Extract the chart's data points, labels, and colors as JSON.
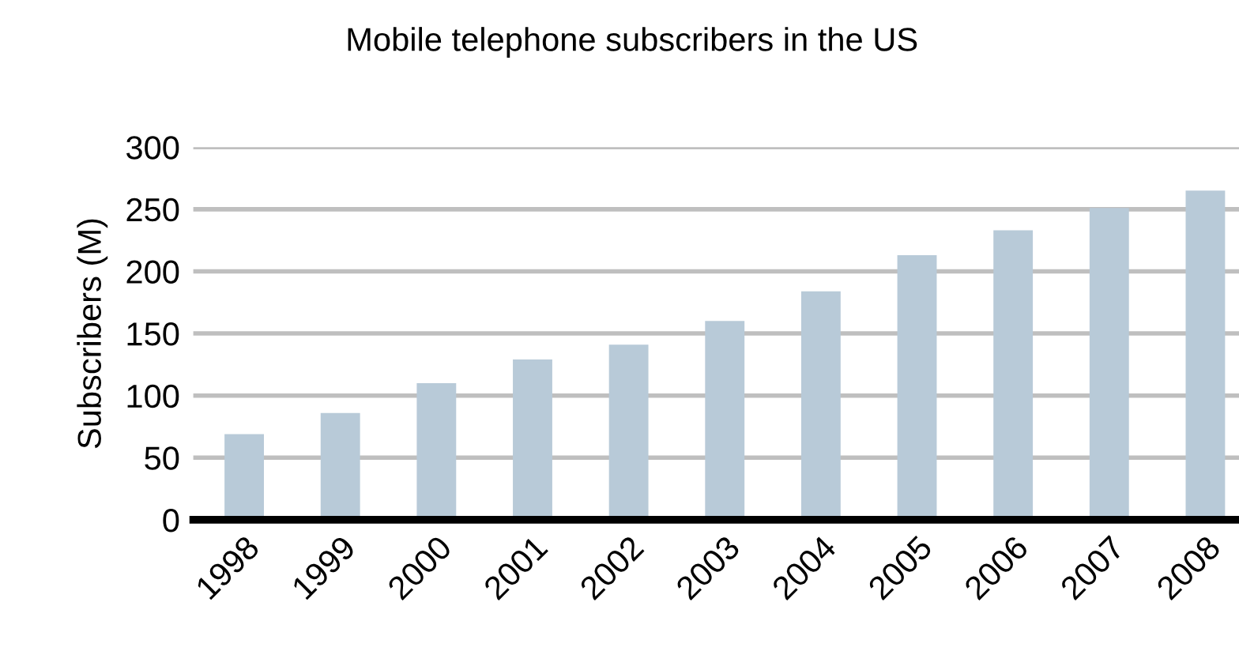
{
  "chart_data": {
    "type": "bar",
    "title": "Mobile telephone subscribers in the US",
    "ylabel": "Subscribers (M)",
    "categories": [
      "1998",
      "1999",
      "2000",
      "2001",
      "2002",
      "2003",
      "2004",
      "2005",
      "2006",
      "2007",
      "2008"
    ],
    "values": [
      69,
      86,
      110,
      129,
      141,
      160,
      184,
      213,
      233,
      251,
      265
    ],
    "color": "#b8cad8",
    "ylim": [
      0,
      300
    ],
    "yticks": [
      0,
      50,
      100,
      150,
      200,
      250,
      300
    ],
    "grid": "y"
  }
}
